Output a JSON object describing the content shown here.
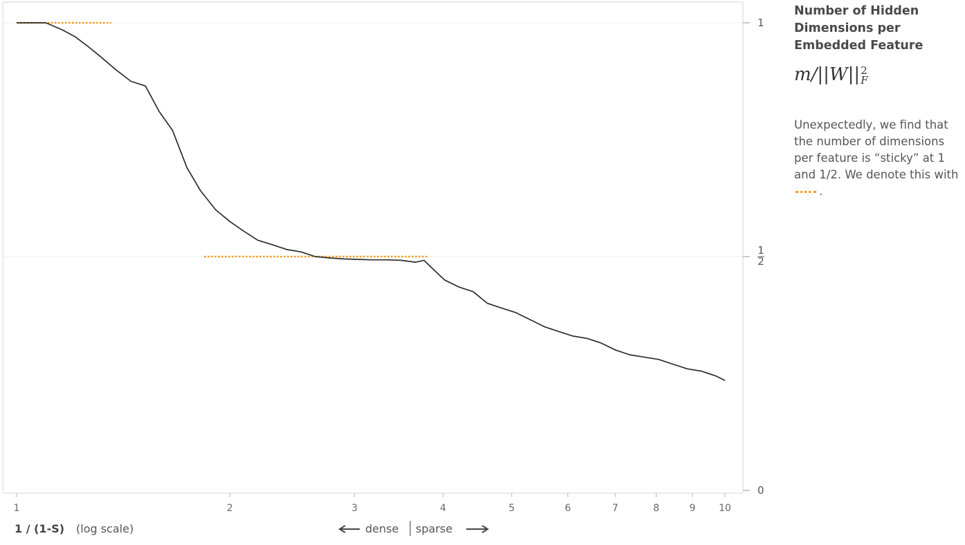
{
  "chart_data": {
    "type": "line",
    "title": "Number of Hidden Dimensions per Embedded Feature",
    "formula": {
      "base": "m/||W||",
      "sup": "2",
      "sub": "F"
    },
    "note": "Unexpectedly, we find that the number of dimensions per feature is “sticky” at 1 and 1/2. We denote this with",
    "note_end": ".",
    "xlabel": "1 / (1-S)",
    "xlabel_note": "(log scale)",
    "direction_label": {
      "left": "dense",
      "right": "sparse"
    },
    "x_scale": "log",
    "xlim": [
      0.98,
      10.4
    ],
    "ylim": [
      0,
      1
    ],
    "x_ticks": [
      1,
      2,
      3,
      4,
      5,
      6,
      7,
      8,
      9,
      10
    ],
    "y_ticks": [
      {
        "value": 1,
        "label": "1"
      },
      {
        "value": 0.5,
        "label": "1/2"
      },
      {
        "value": 0,
        "label": "0"
      }
    ],
    "gridlines_y": [
      1,
      0.5
    ],
    "series": [
      {
        "x": [
          1.0,
          1.05,
          1.1,
          1.16,
          1.21,
          1.26,
          1.32,
          1.38,
          1.45,
          1.52,
          1.59,
          1.66,
          1.74,
          1.82,
          1.91,
          2.0,
          2.09,
          2.19,
          2.3,
          2.41,
          2.52,
          2.64,
          2.77,
          2.9,
          3.04,
          3.18,
          3.33,
          3.49,
          3.66,
          3.76,
          3.83,
          4.02,
          4.21,
          4.41,
          4.62,
          4.84,
          5.07,
          5.31,
          5.56,
          5.82,
          6.1,
          6.39,
          6.69,
          7.01,
          7.34,
          7.69,
          8.06,
          8.44,
          8.84,
          9.26,
          9.7,
          10.0
        ],
        "y": [
          1.0,
          1.0,
          1.0,
          0.985,
          0.97,
          0.95,
          0.925,
          0.9,
          0.875,
          0.865,
          0.81,
          0.77,
          0.69,
          0.64,
          0.6,
          0.575,
          0.555,
          0.535,
          0.525,
          0.515,
          0.51,
          0.5,
          0.497,
          0.495,
          0.494,
          0.493,
          0.493,
          0.492,
          0.488,
          0.492,
          0.48,
          0.45,
          0.435,
          0.425,
          0.4,
          0.39,
          0.38,
          0.365,
          0.35,
          0.34,
          0.33,
          0.325,
          0.315,
          0.3,
          0.29,
          0.285,
          0.28,
          0.27,
          0.26,
          0.255,
          0.245,
          0.235
        ]
      }
    ],
    "sticky_markers": [
      {
        "y": 1,
        "x_start": 1.0,
        "x_end": 1.36
      },
      {
        "y": 0.5,
        "x_start": 1.84,
        "x_end": 3.8
      }
    ],
    "colors": {
      "line": "#2b2b2b",
      "sticky": "#f29a1a",
      "grid": "#ececec",
      "axis": "#d6d6d6"
    }
  }
}
